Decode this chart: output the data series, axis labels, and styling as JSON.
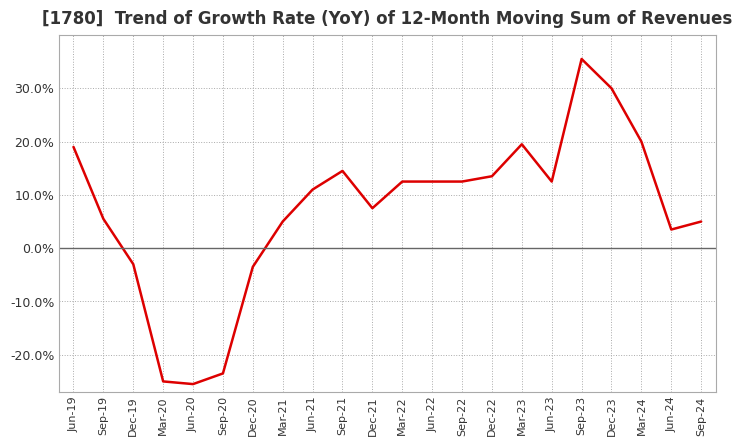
{
  "title": "[1780]  Trend of Growth Rate (YoY) of 12-Month Moving Sum of Revenues",
  "title_fontsize": 12,
  "line_color": "#DD0000",
  "background_color": "#FFFFFF",
  "grid_color": "#AAAAAA",
  "x_labels": [
    "Jun-19",
    "Sep-19",
    "Dec-19",
    "Mar-20",
    "Jun-20",
    "Sep-20",
    "Dec-20",
    "Mar-21",
    "Jun-21",
    "Sep-21",
    "Dec-21",
    "Mar-22",
    "Jun-22",
    "Sep-22",
    "Dec-22",
    "Mar-23",
    "Jun-23",
    "Sep-23",
    "Dec-23",
    "Mar-24",
    "Jun-24",
    "Sep-24"
  ],
  "y_values": [
    19.0,
    5.5,
    -3.0,
    -25.0,
    -25.5,
    -23.5,
    -3.5,
    5.0,
    11.0,
    14.5,
    7.5,
    12.5,
    12.5,
    12.5,
    13.5,
    19.5,
    12.5,
    35.5,
    30.0,
    20.0,
    3.5,
    5.0
  ],
  "ylim": [
    -27,
    40
  ],
  "yticks": [
    -20.0,
    -10.0,
    0.0,
    10.0,
    20.0,
    30.0
  ],
  "figsize": [
    7.2,
    4.4
  ],
  "dpi": 100
}
